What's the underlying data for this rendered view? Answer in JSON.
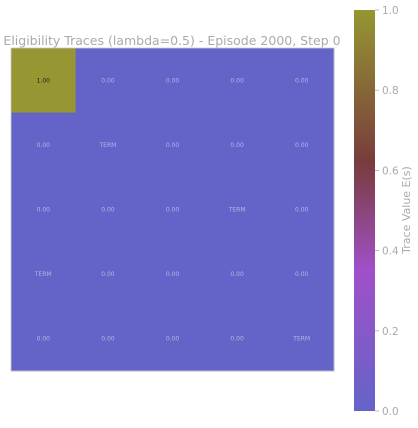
{
  "chart_data": {
    "type": "heatmap",
    "title": "Eligibility Traces (lambda=0.5) - Episode 2000, Step 0",
    "rows": 5,
    "cols": 5,
    "values": [
      [
        1.0,
        0.0,
        0.0,
        0.0,
        0.0
      ],
      [
        0.0,
        0.0,
        0.0,
        0.0,
        0.0
      ],
      [
        0.0,
        0.0,
        0.0,
        0.0,
        0.0
      ],
      [
        0.0,
        0.0,
        0.0,
        0.0,
        0.0
      ],
      [
        0.0,
        0.0,
        0.0,
        0.0,
        0.0
      ]
    ],
    "cell_labels": [
      [
        "1.00",
        "0.00",
        "0.00",
        "0.00",
        "0.00"
      ],
      [
        "0.00",
        "TERM",
        "0.00",
        "0.00",
        "0.00"
      ],
      [
        "0.00",
        "0.00",
        "0.00",
        "TERM",
        "0.00"
      ],
      [
        "TERM",
        "0.00",
        "0.00",
        "0.00",
        "0.00"
      ],
      [
        "0.00",
        "0.00",
        "0.00",
        "0.00",
        "TERM"
      ]
    ],
    "colorbar": {
      "label": "Trace Value E(s)",
      "range": [
        0,
        1
      ],
      "ticks": [
        "0.0",
        "0.2",
        "0.4",
        "0.6",
        "0.8",
        "1.0"
      ],
      "colors": [
        "#6464c8",
        "#a050c8",
        "#783c3c",
        "#969632"
      ]
    },
    "grid": false
  }
}
